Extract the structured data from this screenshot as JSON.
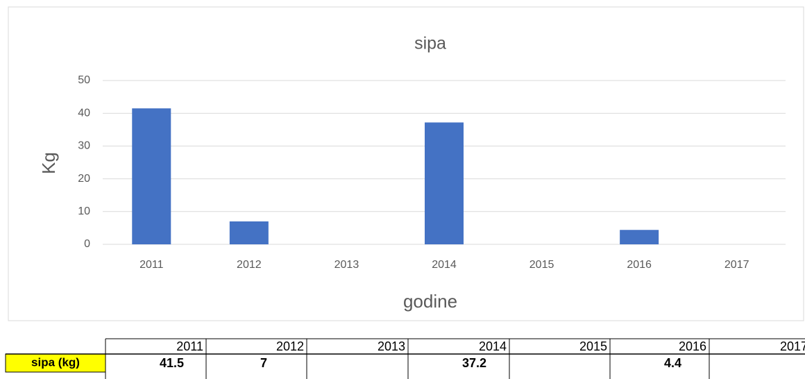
{
  "chart_data": {
    "type": "bar",
    "title": "sipa",
    "x_label": "godine",
    "y_label": "Kg",
    "categories": [
      "2011",
      "2012",
      "2013",
      "2014",
      "2015",
      "2016",
      "2017"
    ],
    "values": [
      41.5,
      7,
      null,
      37.2,
      null,
      4.4,
      null
    ],
    "color": "#4472c4",
    "ylim": [
      0,
      50
    ],
    "yticks": [
      0,
      10,
      20,
      30,
      40,
      50
    ],
    "grid": true
  },
  "table": {
    "row_label": "sipa (kg)"
  }
}
